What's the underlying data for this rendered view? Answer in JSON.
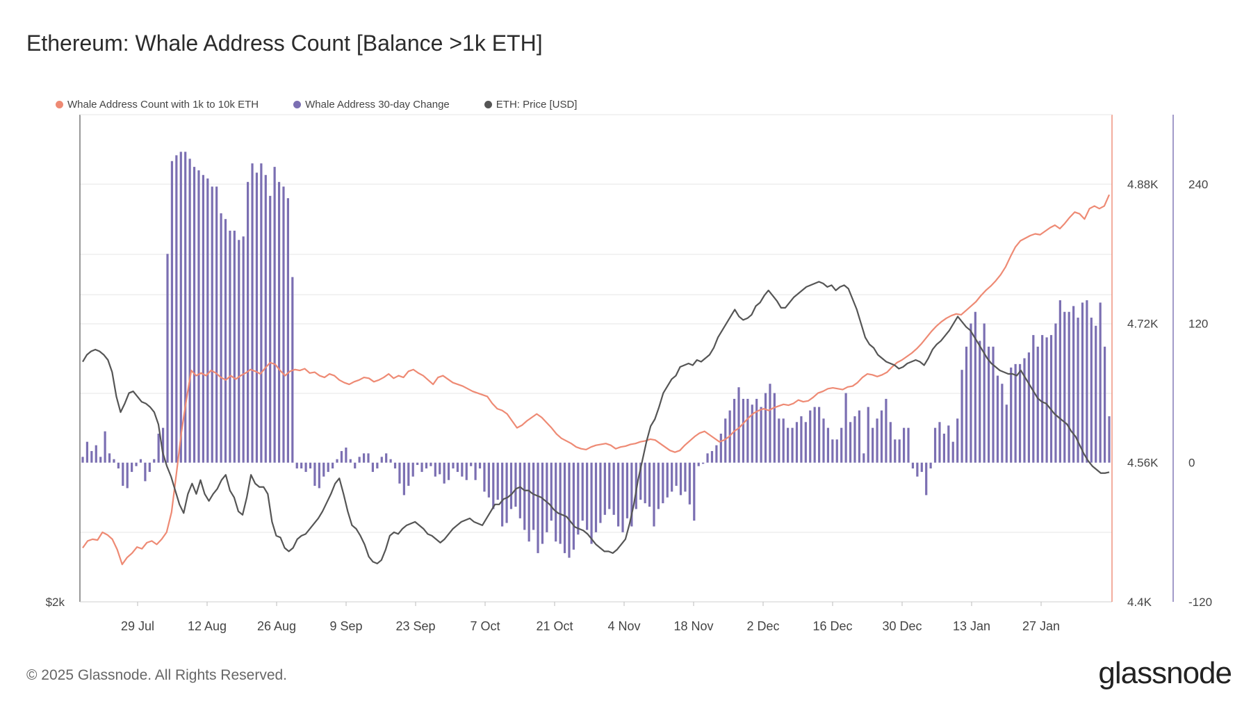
{
  "title": "Ethereum: Whale Address Count [Balance >1k ETH]",
  "legend": [
    {
      "name": "Whale Address Count with 1k to 10k ETH",
      "color": "#ee8a74"
    },
    {
      "name": "Whale Address 30-day Change",
      "color": "#7b6fb2"
    },
    {
      "name": "ETH: Price [USD]",
      "color": "#555555"
    }
  ],
  "footer": "© 2025 Glassnode. All Rights Reserved.",
  "brand": "glassnode",
  "chart_data": {
    "type": "bar+line",
    "x_ticks": [
      "29 Jul",
      "12 Aug",
      "26 Aug",
      "9 Sep",
      "23 Sep",
      "7 Oct",
      "21 Oct",
      "4 Nov",
      "18 Nov",
      "2 Dec",
      "16 Dec",
      "30 Dec",
      "13 Jan",
      "27 Jan"
    ],
    "count_axis": {
      "ticks": [
        "4.88K",
        "4.72K",
        "4.56K",
        "4.4K"
      ],
      "values": [
        4880,
        4720,
        4560,
        4400
      ],
      "range": [
        4400,
        4960
      ]
    },
    "change_axis": {
      "ticks": [
        "240",
        "120",
        "0",
        "-120"
      ],
      "values": [
        240,
        120,
        0,
        -120
      ],
      "range": [
        -120,
        300
      ]
    },
    "price_axis": {
      "ticks": [
        "$2k"
      ],
      "values": [
        2000
      ],
      "range": [
        2000,
        4800
      ]
    },
    "bar_series": {
      "name": "Whale Address 30-day Change",
      "values": [
        5,
        18,
        10,
        15,
        5,
        27,
        8,
        3,
        -5,
        -20,
        -22,
        -8,
        -3,
        3,
        -16,
        -8,
        3,
        25,
        30,
        180,
        260,
        265,
        268,
        268,
        262,
        255,
        252,
        248,
        245,
        238,
        238,
        215,
        210,
        200,
        200,
        192,
        195,
        242,
        258,
        250,
        258,
        248,
        230,
        255,
        242,
        238,
        228,
        160,
        -5,
        -5,
        -8,
        -5,
        -20,
        -22,
        -12,
        -8,
        -5,
        3,
        10,
        13,
        3,
        -5,
        5,
        8,
        8,
        -8,
        -5,
        5,
        8,
        3,
        -5,
        -18,
        -28,
        -20,
        -12,
        -2,
        -8,
        -5,
        -3,
        -12,
        -10,
        -18,
        -15,
        -5,
        -8,
        -12,
        -15,
        -3,
        -15,
        -5,
        -25,
        -30,
        -40,
        -32,
        -55,
        -52,
        -40,
        -38,
        -48,
        -58,
        -68,
        -58,
        -78,
        -70,
        -60,
        -50,
        -68,
        -70,
        -78,
        -82,
        -75,
        -62,
        -50,
        -58,
        -70,
        -60,
        -52,
        -45,
        -40,
        -45,
        -55,
        -60,
        -48,
        -55,
        -40,
        -32,
        -35,
        -38,
        -55,
        -40,
        -35,
        -30,
        -25,
        -20,
        -28,
        -25,
        -36,
        -50,
        -3,
        -1,
        8,
        10,
        15,
        25,
        38,
        45,
        55,
        65,
        55,
        55,
        50,
        55,
        48,
        60,
        68,
        60,
        38,
        38,
        30,
        30,
        35,
        40,
        35,
        45,
        48,
        48,
        38,
        30,
        20,
        20,
        30,
        60,
        35,
        40,
        45,
        8,
        48,
        30,
        38,
        45,
        55,
        35,
        20,
        20,
        30,
        30,
        -5,
        -12,
        -8,
        -28,
        -5,
        30,
        35,
        25,
        32,
        18,
        38,
        80,
        100,
        120,
        130,
        105,
        120,
        100,
        100,
        75,
        68,
        50,
        82,
        85,
        85,
        90,
        95,
        110,
        100,
        110,
        108,
        110,
        120,
        140,
        130,
        130,
        135,
        125,
        138,
        140,
        125,
        118,
        138,
        100,
        40
      ]
    },
    "count_series": {
      "name": "Whale Address Count with 1k to 10k ETH",
      "values": [
        4462,
        4470,
        4472,
        4471,
        4480,
        4477,
        4472,
        4460,
        4443,
        4451,
        4456,
        4463,
        4461,
        4468,
        4470,
        4466,
        4472,
        4480,
        4503,
        4548,
        4595,
        4632,
        4666,
        4660,
        4663,
        4660,
        4666,
        4663,
        4658,
        4655,
        4660,
        4656,
        4660,
        4663,
        4667,
        4665,
        4662,
        4669,
        4675,
        4673,
        4666,
        4660,
        4665,
        4667,
        4666,
        4668,
        4663,
        4664,
        4660,
        4658,
        4662,
        4660,
        4655,
        4652,
        4650,
        4653,
        4655,
        4658,
        4657,
        4653,
        4655,
        4658,
        4662,
        4657,
        4660,
        4658,
        4665,
        4667,
        4663,
        4660,
        4655,
        4650,
        4658,
        4660,
        4656,
        4652,
        4650,
        4648,
        4645,
        4642,
        4640,
        4638,
        4636,
        4628,
        4622,
        4620,
        4616,
        4608,
        4600,
        4603,
        4608,
        4612,
        4616,
        4612,
        4606,
        4600,
        4593,
        4588,
        4585,
        4582,
        4578,
        4576,
        4575,
        4578,
        4580,
        4581,
        4582,
        4580,
        4576,
        4578,
        4579,
        4581,
        4582,
        4584,
        4585,
        4587,
        4586,
        4582,
        4578,
        4574,
        4572,
        4574,
        4580,
        4585,
        4590,
        4594,
        4596,
        4592,
        4588,
        4584,
        4586,
        4590,
        4596,
        4600,
        4606,
        4612,
        4617,
        4620,
        4622,
        4620,
        4623,
        4625,
        4627,
        4626,
        4628,
        4632,
        4630,
        4631,
        4635,
        4640,
        4642,
        4645,
        4646,
        4645,
        4644,
        4647,
        4648,
        4652,
        4658,
        4662,
        4661,
        4659,
        4661,
        4664,
        4670,
        4675,
        4678,
        4682,
        4686,
        4691,
        4697,
        4704,
        4711,
        4717,
        4722,
        4726,
        4729,
        4731,
        4730,
        4735,
        4740,
        4745,
        4752,
        4758,
        4763,
        4769,
        4776,
        4785,
        4797,
        4808,
        4815,
        4818,
        4821,
        4823,
        4822,
        4826,
        4830,
        4833,
        4829,
        4835,
        4842,
        4848,
        4846,
        4840,
        4852,
        4855,
        4852,
        4855,
        4868
      ]
    },
    "price_series": {
      "name": "ETH: Price [USD]",
      "values": [
        3380,
        3420,
        3440,
        3450,
        3440,
        3420,
        3390,
        3320,
        3180,
        3090,
        3140,
        3200,
        3210,
        3180,
        3150,
        3140,
        3120,
        3090,
        3020,
        2860,
        2780,
        2720,
        2640,
        2560,
        2510,
        2620,
        2680,
        2620,
        2700,
        2620,
        2580,
        2620,
        2650,
        2700,
        2730,
        2640,
        2600,
        2520,
        2500,
        2600,
        2730,
        2680,
        2660,
        2660,
        2620,
        2460,
        2380,
        2370,
        2310,
        2290,
        2310,
        2360,
        2380,
        2390,
        2420,
        2450,
        2480,
        2520,
        2570,
        2620,
        2680,
        2710,
        2620,
        2520,
        2440,
        2420,
        2380,
        2330,
        2260,
        2230,
        2220,
        2240,
        2300,
        2380,
        2400,
        2390,
        2420,
        2440,
        2450,
        2460,
        2440,
        2420,
        2390,
        2380,
        2360,
        2340,
        2360,
        2390,
        2420,
        2440,
        2460,
        2470,
        2480,
        2460,
        2450,
        2440,
        2480,
        2520,
        2560,
        2560,
        2590,
        2600,
        2620,
        2650,
        2660,
        2640,
        2640,
        2620,
        2610,
        2600,
        2580,
        2560,
        2530,
        2510,
        2500,
        2490,
        2460,
        2430,
        2420,
        2410,
        2390,
        2360,
        2330,
        2310,
        2290,
        2290,
        2280,
        2300,
        2330,
        2360,
        2450,
        2560,
        2700,
        2810,
        2920,
        3010,
        3050,
        3120,
        3200,
        3240,
        3280,
        3300,
        3350,
        3360,
        3370,
        3360,
        3390,
        3380,
        3400,
        3420,
        3460,
        3520,
        3560,
        3600,
        3640,
        3680,
        3640,
        3620,
        3630,
        3650,
        3700,
        3720,
        3760,
        3790,
        3760,
        3730,
        3690,
        3690,
        3720,
        3750,
        3770,
        3790,
        3810,
        3820,
        3830,
        3840,
        3830,
        3810,
        3820,
        3790,
        3810,
        3820,
        3800,
        3740,
        3680,
        3600,
        3520,
        3480,
        3460,
        3420,
        3400,
        3380,
        3370,
        3360,
        3340,
        3350,
        3370,
        3380,
        3390,
        3380,
        3360,
        3400,
        3450,
        3480,
        3500,
        3530,
        3560,
        3600,
        3640,
        3610,
        3580,
        3560,
        3520,
        3480,
        3440,
        3400,
        3370,
        3350,
        3330,
        3320,
        3310,
        3310,
        3300,
        3330,
        3290,
        3250,
        3210,
        3170,
        3150,
        3140,
        3110,
        3080,
        3060,
        3040,
        3020,
        2980,
        2950,
        2900,
        2850,
        2810,
        2780,
        2760,
        2740,
        2740,
        2745
      ]
    }
  }
}
